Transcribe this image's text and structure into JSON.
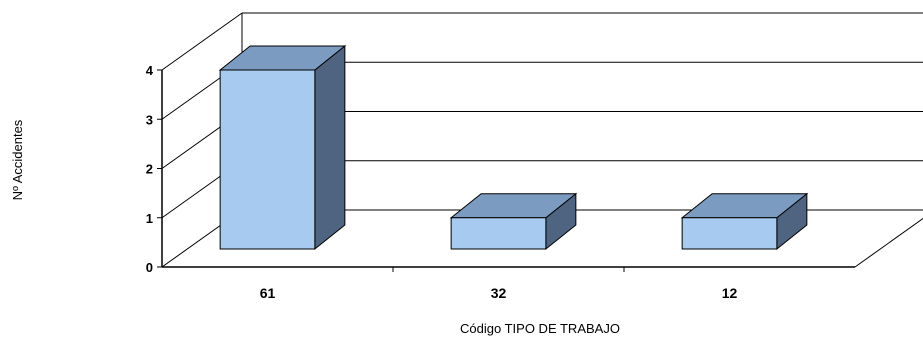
{
  "chart_data": {
    "type": "bar",
    "style": "3d",
    "categories": [
      "61",
      "32",
      "12"
    ],
    "values": [
      4,
      1,
      1
    ],
    "title": "",
    "xlabel": "Código TIPO DE TRABAJO",
    "ylabel": "Nº Accidentes",
    "ylim": [
      0,
      4
    ],
    "yticks": [
      0,
      1,
      2,
      3,
      4
    ],
    "grid": true,
    "legend": "none",
    "colors": {
      "bar_front": "#a6caf0",
      "bar_top": "#7c9bc0",
      "bar_side": "#4f6480",
      "grid": "#000000"
    }
  }
}
